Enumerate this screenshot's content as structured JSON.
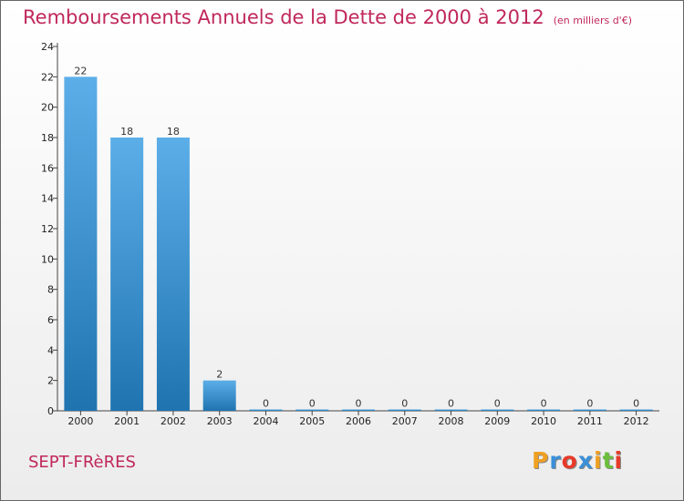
{
  "chart_data": {
    "type": "bar",
    "title": "Remboursements Annuels de la Dette de 2000 à 2012",
    "unit_note": "(en milliers d'€)",
    "categories": [
      "2000",
      "2001",
      "2002",
      "2003",
      "2004",
      "2005",
      "2006",
      "2007",
      "2008",
      "2009",
      "2010",
      "2011",
      "2012"
    ],
    "values": [
      22,
      18,
      18,
      2,
      0,
      0,
      0,
      0,
      0,
      0,
      0,
      0,
      0
    ],
    "ylim": [
      0,
      24
    ],
    "yticks": [
      0,
      2,
      4,
      6,
      8,
      10,
      12,
      14,
      16,
      18,
      20,
      22,
      24
    ],
    "xlabel": "",
    "ylabel": "",
    "grid": false,
    "bar_color_top": "#5caee8",
    "bar_color_bottom": "#1f74b0",
    "title_color": "#c0285a"
  },
  "commune": "SEPT-FRèRES",
  "logo": {
    "letters": [
      {
        "ch": "P",
        "color": "#f0a020"
      },
      {
        "ch": "r",
        "color": "#3a8fd8"
      },
      {
        "ch": "o",
        "color": "#e83a2a"
      },
      {
        "ch": "x",
        "color": "#3a8fd8"
      },
      {
        "ch": "i",
        "color": "#f0a020"
      },
      {
        "ch": "t",
        "color": "#6cbf3a"
      },
      {
        "ch": "i",
        "color": "#e83a2a"
      }
    ]
  }
}
